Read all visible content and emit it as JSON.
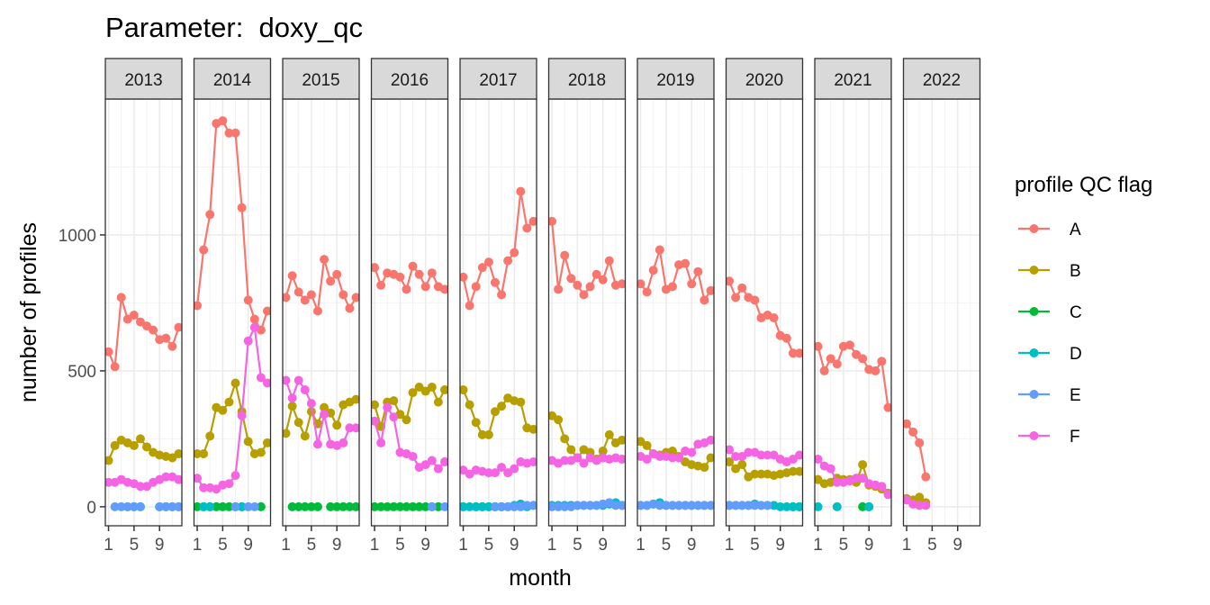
{
  "chart_data": {
    "type": "line",
    "title": "Parameter:  doxy_qc",
    "xlabel": "month",
    "ylabel": "number of profiles",
    "legend_title": "profile QC flag",
    "legend_position": "right",
    "grid": true,
    "xlim": [
      0.5,
      12.5
    ],
    "ylim": [
      -70,
      1500
    ],
    "x_ticks": [
      1,
      5,
      9
    ],
    "y_ticks": [
      0,
      500,
      1000
    ],
    "facets": [
      "2013",
      "2014",
      "2015",
      "2016",
      "2017",
      "2018",
      "2019",
      "2020",
      "2021",
      "2022"
    ],
    "series": [
      {
        "name": "A",
        "color": "#F8766D",
        "values": [
          [
            570,
            515,
            770,
            690,
            705,
            680,
            665,
            650,
            615,
            620,
            590,
            660
          ],
          [
            740,
            945,
            1075,
            1410,
            1420,
            1375,
            1375,
            1100,
            760,
            690,
            650,
            720
          ],
          [
            770,
            850,
            790,
            760,
            780,
            720,
            910,
            830,
            855,
            780,
            730,
            770
          ],
          [
            880,
            815,
            860,
            855,
            845,
            800,
            885,
            855,
            810,
            860,
            810,
            800
          ],
          [
            845,
            740,
            810,
            880,
            900,
            825,
            780,
            905,
            935,
            1160,
            1025,
            1050
          ],
          [
            1050,
            800,
            925,
            840,
            815,
            780,
            810,
            855,
            835,
            905,
            815,
            820
          ],
          [
            820,
            790,
            870,
            945,
            800,
            810,
            890,
            895,
            820,
            865,
            760,
            795
          ],
          [
            830,
            770,
            805,
            770,
            760,
            695,
            705,
            695,
            630,
            620,
            565,
            565
          ],
          [
            590,
            500,
            545,
            525,
            590,
            595,
            560,
            545,
            505,
            500,
            535,
            365
          ],
          [
            305,
            275,
            235,
            110,
            null,
            null,
            null,
            null,
            null,
            null,
            null,
            null
          ]
        ]
      },
      {
        "name": "B",
        "color": "#B79F00",
        "values": [
          [
            170,
            225,
            245,
            235,
            225,
            250,
            220,
            200,
            190,
            185,
            180,
            195
          ],
          [
            195,
            195,
            260,
            365,
            355,
            385,
            455,
            350,
            240,
            195,
            200,
            235
          ],
          [
            270,
            370,
            310,
            260,
            350,
            305,
            365,
            345,
            300,
            375,
            385,
            395
          ],
          [
            375,
            295,
            385,
            390,
            340,
            320,
            420,
            440,
            425,
            440,
            385,
            430
          ],
          [
            430,
            375,
            310,
            265,
            265,
            350,
            370,
            400,
            390,
            385,
            290,
            285
          ],
          [
            335,
            320,
            250,
            210,
            180,
            210,
            200,
            175,
            205,
            265,
            235,
            245
          ],
          [
            240,
            225,
            195,
            190,
            200,
            205,
            185,
            165,
            155,
            150,
            145,
            180
          ],
          [
            165,
            140,
            155,
            110,
            120,
            120,
            120,
            115,
            120,
            125,
            130,
            130
          ],
          [
            100,
            85,
            90,
            105,
            100,
            100,
            90,
            155,
            80,
            75,
            65,
            50
          ],
          [
            30,
            25,
            35,
            15,
            null,
            null,
            null,
            null,
            null,
            null,
            null,
            null
          ]
        ]
      },
      {
        "name": "C",
        "color": "#00BA38",
        "values": [
          [
            null,
            null,
            null,
            0,
            0,
            0,
            null,
            null,
            0,
            0,
            0,
            0
          ],
          [
            0,
            0,
            0,
            0,
            0,
            0,
            0,
            0,
            null,
            null,
            0,
            null
          ],
          [
            null,
            0,
            0,
            0,
            0,
            0,
            null,
            0,
            0,
            0,
            0,
            0
          ],
          [
            0,
            0,
            0,
            0,
            0,
            0,
            0,
            0,
            0,
            0,
            0,
            null
          ],
          [
            0,
            null,
            0,
            0,
            0,
            0,
            0,
            null,
            null,
            null,
            null,
            null
          ],
          [
            null,
            null,
            null,
            null,
            null,
            null,
            null,
            null,
            null,
            null,
            null,
            null
          ],
          [
            null,
            null,
            null,
            null,
            null,
            null,
            null,
            null,
            null,
            null,
            null,
            null
          ],
          [
            null,
            null,
            null,
            null,
            null,
            null,
            null,
            null,
            null,
            null,
            0,
            0
          ],
          [
            null,
            null,
            null,
            null,
            null,
            null,
            null,
            0,
            0,
            null,
            null,
            null
          ],
          [
            null,
            null,
            null,
            null,
            null,
            null,
            null,
            null,
            null,
            null,
            null,
            null
          ]
        ]
      },
      {
        "name": "D",
        "color": "#00BFC4",
        "values": [
          [
            null,
            null,
            null,
            null,
            null,
            null,
            null,
            null,
            null,
            null,
            null,
            null
          ],
          [
            null,
            0,
            0,
            null,
            null,
            null,
            null,
            0,
            null,
            null,
            null,
            null
          ],
          [
            null,
            null,
            null,
            null,
            null,
            null,
            null,
            null,
            null,
            null,
            null,
            null
          ],
          [
            null,
            null,
            null,
            null,
            null,
            null,
            null,
            null,
            null,
            null,
            null,
            null
          ],
          [
            0,
            0,
            0,
            0,
            0,
            0,
            0,
            0,
            5,
            10,
            0,
            5
          ],
          [
            5,
            5,
            5,
            5,
            5,
            5,
            5,
            5,
            5,
            10,
            15,
            5
          ],
          [
            5,
            5,
            10,
            15,
            5,
            5,
            5,
            5,
            5,
            5,
            5,
            5
          ],
          [
            5,
            5,
            5,
            5,
            10,
            5,
            5,
            5,
            0,
            0,
            0,
            0
          ],
          [
            0,
            null,
            null,
            0,
            null,
            null,
            null,
            null,
            0,
            null,
            null,
            null
          ],
          [
            null,
            null,
            null,
            null,
            null,
            null,
            null,
            null,
            null,
            null,
            null,
            null
          ]
        ]
      },
      {
        "name": "E",
        "color": "#619CFF",
        "values": [
          [
            null,
            0,
            0,
            0,
            0,
            0,
            null,
            null,
            0,
            0,
            0,
            0
          ],
          [
            null,
            null,
            null,
            null,
            null,
            null,
            0,
            null,
            0,
            0,
            null,
            null
          ],
          [
            null,
            null,
            null,
            null,
            null,
            null,
            null,
            null,
            null,
            null,
            null,
            null
          ],
          [
            null,
            null,
            null,
            null,
            null,
            null,
            null,
            null,
            null,
            0,
            null,
            0
          ],
          [
            null,
            null,
            null,
            null,
            null,
            0,
            0,
            0,
            0,
            0,
            5,
            5
          ],
          [
            0,
            0,
            0,
            0,
            5,
            5,
            5,
            5,
            10,
            15,
            5,
            5
          ],
          [
            5,
            5,
            10,
            5,
            5,
            5,
            5,
            5,
            5,
            5,
            5,
            5
          ],
          [
            5,
            5,
            5,
            5,
            5,
            5,
            5,
            null,
            null,
            null,
            null,
            null
          ],
          [
            null,
            null,
            null,
            null,
            null,
            null,
            null,
            null,
            null,
            null,
            null,
            null
          ],
          [
            null,
            null,
            null,
            null,
            null,
            null,
            null,
            null,
            null,
            null,
            null,
            null
          ]
        ]
      },
      {
        "name": "F",
        "color": "#F564E3",
        "values": [
          [
            90,
            90,
            100,
            90,
            85,
            75,
            75,
            90,
            100,
            110,
            110,
            100
          ],
          [
            105,
            70,
            70,
            65,
            80,
            85,
            115,
            335,
            610,
            660,
            475,
            455
          ],
          [
            465,
            400,
            465,
            430,
            380,
            230,
            340,
            230,
            225,
            235,
            290,
            290
          ],
          [
            315,
            235,
            365,
            330,
            200,
            195,
            185,
            145,
            155,
            170,
            140,
            165
          ],
          [
            135,
            120,
            135,
            130,
            125,
            125,
            145,
            125,
            140,
            165,
            160,
            165
          ],
          [
            170,
            160,
            170,
            170,
            180,
            160,
            180,
            170,
            180,
            175,
            180,
            175
          ],
          [
            185,
            175,
            195,
            185,
            185,
            180,
            180,
            205,
            200,
            230,
            235,
            245
          ],
          [
            210,
            185,
            185,
            200,
            200,
            190,
            190,
            190,
            175,
            165,
            175,
            190
          ],
          [
            175,
            150,
            140,
            90,
            90,
            95,
            105,
            105,
            85,
            80,
            75,
            45
          ],
          [
            25,
            10,
            5,
            5,
            null,
            null,
            null,
            null,
            null,
            null,
            null,
            null
          ]
        ]
      }
    ]
  }
}
